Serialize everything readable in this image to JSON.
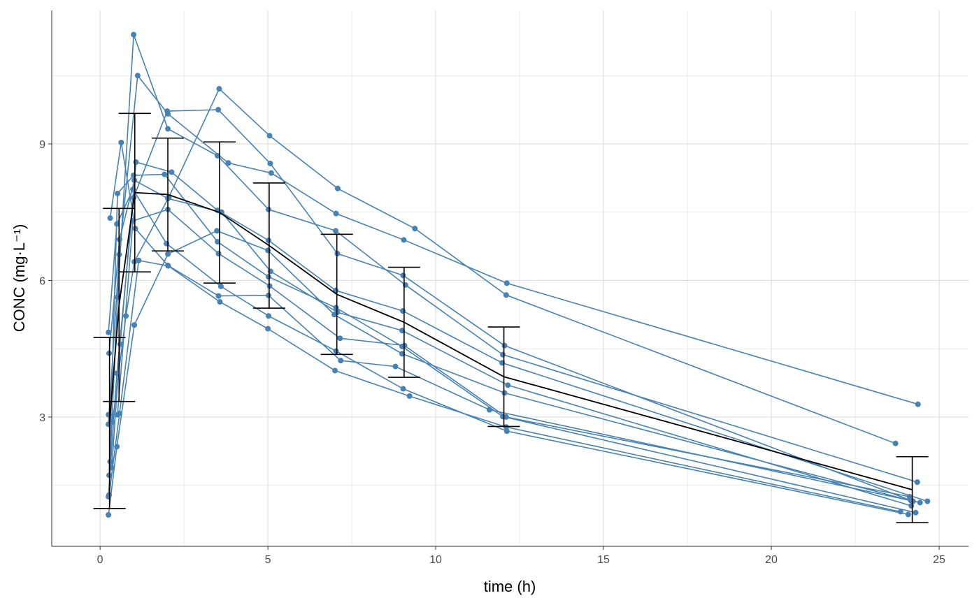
{
  "chart_data": {
    "type": "line",
    "title": "",
    "xlabel": "time (h)",
    "ylabel": "CONC (mg·L⁻¹)",
    "xlim": [
      -1.44,
      25.875
    ],
    "ylim": [
      0.16,
      11.93
    ],
    "x_ticks": [
      0,
      5,
      10,
      15,
      20,
      25
    ],
    "x_tick_labels": [
      "0",
      "5",
      "10",
      "15",
      "20",
      "25"
    ],
    "y_ticks": [
      3,
      6,
      9
    ],
    "y_tick_labels": [
      "3",
      "6",
      "9"
    ],
    "grid": true,
    "legend": "none",
    "colors": {
      "individual": "#4682B4",
      "summary": "#000000",
      "grid": "#d9d9d9",
      "axis": "#333333"
    },
    "summary": "mean with ±SD error bars",
    "series": [
      {
        "x": [
          0.25,
          0.57,
          1.12,
          2.02,
          3.82,
          5.1,
          7.03,
          9.05,
          12.12,
          24.37
        ],
        "y": [
          2.84,
          6.57,
          10.5,
          9.66,
          8.58,
          8.36,
          7.47,
          6.89,
          5.94,
          3.28
        ]
      },
      {
        "x": [
          0.27,
          0.52,
          1.0,
          1.92,
          3.5,
          5.02,
          7.03,
          9.0,
          12.0,
          24.3
        ],
        "y": [
          1.72,
          7.91,
          8.31,
          8.33,
          6.85,
          6.08,
          5.4,
          4.55,
          3.01,
          0.9
        ]
      },
      {
        "x": [
          0.27,
          0.58,
          1.02,
          2.02,
          3.62,
          5.08,
          7.07,
          9.0,
          12.15,
          24.17
        ],
        "y": [
          4.4,
          6.9,
          8.2,
          7.8,
          7.5,
          6.2,
          5.3,
          4.9,
          3.7,
          1.05
        ]
      },
      {
        "x": [
          0.35,
          0.6,
          1.07,
          2.13,
          3.5,
          5.02,
          7.02,
          9.02,
          11.98,
          24.65
        ],
        "y": [
          1.89,
          4.6,
          8.6,
          8.38,
          7.54,
          6.88,
          5.78,
          5.33,
          4.19,
          1.15
        ]
      },
      {
        "x": [
          0.3,
          0.52,
          1.0,
          2.02,
          3.5,
          5.02,
          7.02,
          9.1,
          12.0,
          24.35
        ],
        "y": [
          2.02,
          5.63,
          11.4,
          9.33,
          8.74,
          7.56,
          7.09,
          5.9,
          4.37,
          1.57
        ]
      },
      {
        "x": [
          0.27,
          0.58,
          1.15,
          2.03,
          3.57,
          5.0,
          7.0,
          9.22,
          12.1,
          23.85
        ],
        "y": [
          1.29,
          3.08,
          6.44,
          6.32,
          5.53,
          4.94,
          4.02,
          3.46,
          2.78,
          0.92
        ]
      },
      {
        "x": [
          0.25,
          0.5,
          1.02,
          2.02,
          3.48,
          5.0,
          6.98,
          9.0,
          12.05,
          24.22
        ],
        "y": [
          0.85,
          2.35,
          5.02,
          6.58,
          7.09,
          6.66,
          5.25,
          4.39,
          3.53,
          1.15
        ]
      },
      {
        "x": [
          0.25,
          0.52,
          0.98,
          2.02,
          3.53,
          5.05,
          7.15,
          9.07,
          12.1,
          24.12
        ],
        "y": [
          3.05,
          3.05,
          7.31,
          7.56,
          6.59,
          5.88,
          4.73,
          4.57,
          3.0,
          1.25
        ]
      },
      {
        "x": [
          0.3,
          0.63,
          1.05,
          2.02,
          3.53,
          5.02,
          7.17,
          8.8,
          11.6,
          24.43
        ],
        "y": [
          7.37,
          9.03,
          7.14,
          6.33,
          5.66,
          5.67,
          4.24,
          4.11,
          3.16,
          1.12
        ]
      },
      {
        "x": [
          0.37,
          0.77,
          1.02,
          2.05,
          3.55,
          5.05,
          7.08,
          9.38,
          12.1,
          23.7
        ],
        "y": [
          2.89,
          5.22,
          6.41,
          7.83,
          10.21,
          9.18,
          8.02,
          7.14,
          5.68,
          2.42
        ]
      },
      {
        "x": [
          0.25,
          0.5,
          0.98,
          1.98,
          3.6,
          5.02,
          7.03,
          9.03,
          12.12,
          24.08
        ],
        "y": [
          4.86,
          7.24,
          8.0,
          6.81,
          5.87,
          5.22,
          4.45,
          3.62,
          2.69,
          0.86
        ]
      },
      {
        "x": [
          0.25,
          0.5,
          1.0,
          2.0,
          3.52,
          5.07,
          7.07,
          9.03,
          12.05,
          24.15
        ],
        "y": [
          1.25,
          3.96,
          7.82,
          9.72,
          9.75,
          8.57,
          6.59,
          6.11,
          4.57,
          1.17
        ]
      }
    ]
  }
}
